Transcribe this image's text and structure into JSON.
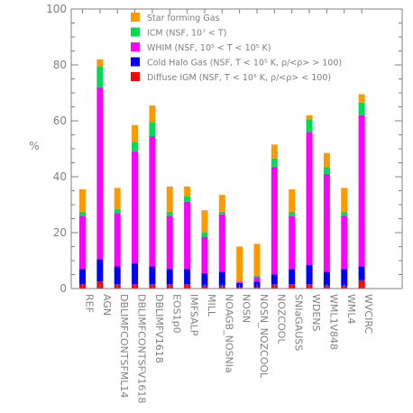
{
  "chart_data": {
    "type": "bar",
    "stacked": true,
    "title": "",
    "xlabel": "",
    "ylabel": "%",
    "ylim": [
      0,
      100
    ],
    "yticks": [
      0,
      20,
      40,
      60,
      80,
      100
    ],
    "grid": false,
    "legend_position": "top-center",
    "categories": [
      "REF",
      "AGN",
      "DBLIMFCONTSFML14",
      "DBLIMFCONTSFV1618",
      "DBLIMFV1618",
      "EOS1p0",
      "IMFSALP",
      "MILL",
      "NOAGB_NOSNIa",
      "NOSN",
      "NOSN_NOZCOOL",
      "NOZCOOL",
      "SNIaGAUSS",
      "WDENS",
      "WML1V848",
      "WML4",
      "WVCIRC"
    ],
    "series": [
      {
        "name": "Diffuse IGM (NSF, T < 10⁵ K, ρ/<ρ> < 100)",
        "color": "#ff0000",
        "values": [
          1.5,
          2.5,
          1.5,
          1.5,
          1.5,
          1.5,
          1.5,
          1.0,
          1.0,
          0.5,
          0.5,
          1.5,
          1.5,
          1.5,
          1.0,
          1.0,
          3.0
        ]
      },
      {
        "name": "Cold Halo Gas (NSF, T < 10⁵ K, ρ/<ρ> > 100)",
        "color": "#0000ff",
        "values": [
          5.5,
          8.0,
          6.5,
          7.5,
          6.5,
          5.5,
          5.5,
          4.5,
          5.0,
          1.5,
          2.0,
          3.5,
          5.5,
          7.0,
          5.0,
          6.0,
          5.0
        ]
      },
      {
        "name": "WHIM (NSF, 10⁵ < T < 10⁵ K)",
        "color": "#ff00ff",
        "values": [
          19.0,
          61.5,
          19.0,
          40.0,
          46.5,
          19.0,
          24.0,
          13.0,
          20.5,
          0.5,
          1.5,
          38.5,
          19.0,
          47.5,
          35.0,
          19.0,
          54.0
        ]
      },
      {
        "name": "ICM (NSF, 10⁷ < T)",
        "color": "#00dd55",
        "values": [
          1.5,
          7.5,
          1.5,
          3.5,
          5.0,
          1.5,
          2.0,
          1.5,
          1.0,
          0.0,
          0.5,
          3.0,
          1.5,
          4.5,
          2.5,
          1.5,
          4.5
        ]
      },
      {
        "name": "Star forming Gas",
        "color": "#ff9900",
        "values": [
          8.0,
          2.5,
          7.5,
          6.0,
          6.0,
          9.0,
          3.5,
          8.0,
          6.0,
          12.5,
          11.5,
          5.0,
          8.0,
          1.5,
          5.0,
          8.5,
          3.0
        ]
      }
    ]
  }
}
